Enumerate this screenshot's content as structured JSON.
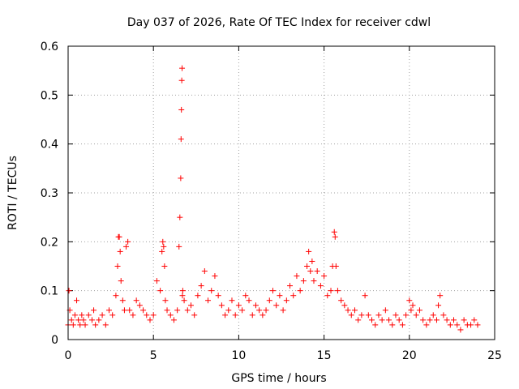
{
  "chart_data": {
    "type": "scatter",
    "title": "Day 037 of 2026, Rate Of TEC Index for receiver cdwl",
    "xlabel": "GPS time / hours",
    "ylabel": "ROTI / TECUs",
    "xlim": [
      0,
      25
    ],
    "ylim": [
      0,
      0.6
    ],
    "xticks": [
      0,
      5,
      10,
      15,
      20,
      25
    ],
    "xtick_labels": [
      "0",
      "5",
      "10",
      "15",
      "20",
      "25"
    ],
    "yticks": [
      0,
      0.1,
      0.2,
      0.3,
      0.4,
      0.5,
      0.6
    ],
    "ytick_labels": [
      "0",
      "0.1",
      "0.2",
      "0.3",
      "0.4",
      "0.5",
      "0.6"
    ],
    "grid": true,
    "marker": "plus",
    "color": "#ff0000",
    "series": [
      {
        "x": [
          0.0,
          0.05,
          0.1,
          0.2,
          0.3,
          0.4,
          0.5,
          0.6,
          0.7,
          0.8,
          0.9,
          1.0,
          1.2,
          1.4,
          1.5,
          1.6,
          1.8,
          2.0,
          2.2,
          2.4,
          2.6,
          2.8,
          2.9,
          2.95,
          3.0,
          3.05,
          3.1,
          3.2,
          3.3,
          3.4,
          3.5,
          3.6,
          3.8,
          4.0,
          4.2,
          4.4,
          4.6,
          4.8,
          5.0,
          5.2,
          5.4,
          5.5,
          5.55,
          5.6,
          5.65,
          5.7,
          5.8,
          6.0,
          6.2,
          6.4,
          6.5,
          6.55,
          6.6,
          6.62,
          6.64,
          6.66,
          6.68,
          6.7,
          6.72,
          6.8,
          7.0,
          7.2,
          7.4,
          7.6,
          7.8,
          8.0,
          8.2,
          8.4,
          8.6,
          8.8,
          9.0,
          9.2,
          9.4,
          9.6,
          9.8,
          10.0,
          10.2,
          10.4,
          10.6,
          10.8,
          11.0,
          11.2,
          11.4,
          11.6,
          11.8,
          12.0,
          12.2,
          12.4,
          12.6,
          12.8,
          13.0,
          13.2,
          13.4,
          13.6,
          13.8,
          14.0,
          14.1,
          14.2,
          14.3,
          14.4,
          14.6,
          14.8,
          15.0,
          15.2,
          15.4,
          15.5,
          15.6,
          15.65,
          15.7,
          15.8,
          16.0,
          16.2,
          16.4,
          16.6,
          16.8,
          17.0,
          17.2,
          17.4,
          17.6,
          17.8,
          18.0,
          18.2,
          18.4,
          18.6,
          18.8,
          19.0,
          19.2,
          19.4,
          19.6,
          19.8,
          20.0,
          20.1,
          20.2,
          20.4,
          20.6,
          20.8,
          21.0,
          21.2,
          21.4,
          21.6,
          21.7,
          21.8,
          22.0,
          22.2,
          22.4,
          22.6,
          22.8,
          23.0,
          23.2,
          23.4,
          23.6,
          23.8,
          24.0
        ],
        "y": [
          0.03,
          0.1,
          0.06,
          0.04,
          0.03,
          0.05,
          0.08,
          0.04,
          0.03,
          0.05,
          0.04,
          0.03,
          0.05,
          0.04,
          0.06,
          0.03,
          0.04,
          0.05,
          0.03,
          0.06,
          0.05,
          0.09,
          0.15,
          0.21,
          0.21,
          0.18,
          0.12,
          0.08,
          0.06,
          0.19,
          0.2,
          0.06,
          0.05,
          0.08,
          0.07,
          0.06,
          0.05,
          0.04,
          0.05,
          0.12,
          0.1,
          0.18,
          0.2,
          0.19,
          0.15,
          0.08,
          0.06,
          0.05,
          0.04,
          0.06,
          0.19,
          0.25,
          0.33,
          0.41,
          0.47,
          0.53,
          0.555,
          0.09,
          0.1,
          0.08,
          0.06,
          0.07,
          0.05,
          0.09,
          0.11,
          0.14,
          0.08,
          0.1,
          0.13,
          0.09,
          0.07,
          0.05,
          0.06,
          0.08,
          0.05,
          0.07,
          0.06,
          0.09,
          0.08,
          0.05,
          0.07,
          0.06,
          0.05,
          0.06,
          0.08,
          0.1,
          0.07,
          0.09,
          0.06,
          0.08,
          0.11,
          0.09,
          0.13,
          0.1,
          0.12,
          0.15,
          0.18,
          0.14,
          0.16,
          0.12,
          0.14,
          0.11,
          0.13,
          0.09,
          0.1,
          0.15,
          0.22,
          0.21,
          0.15,
          0.1,
          0.08,
          0.07,
          0.06,
          0.05,
          0.06,
          0.04,
          0.05,
          0.09,
          0.05,
          0.04,
          0.03,
          0.05,
          0.04,
          0.06,
          0.04,
          0.03,
          0.05,
          0.04,
          0.03,
          0.05,
          0.08,
          0.06,
          0.07,
          0.05,
          0.06,
          0.04,
          0.03,
          0.04,
          0.05,
          0.04,
          0.07,
          0.09,
          0.05,
          0.04,
          0.03,
          0.04,
          0.03,
          0.02,
          0.04,
          0.03,
          0.03,
          0.04,
          0.03
        ]
      }
    ]
  }
}
